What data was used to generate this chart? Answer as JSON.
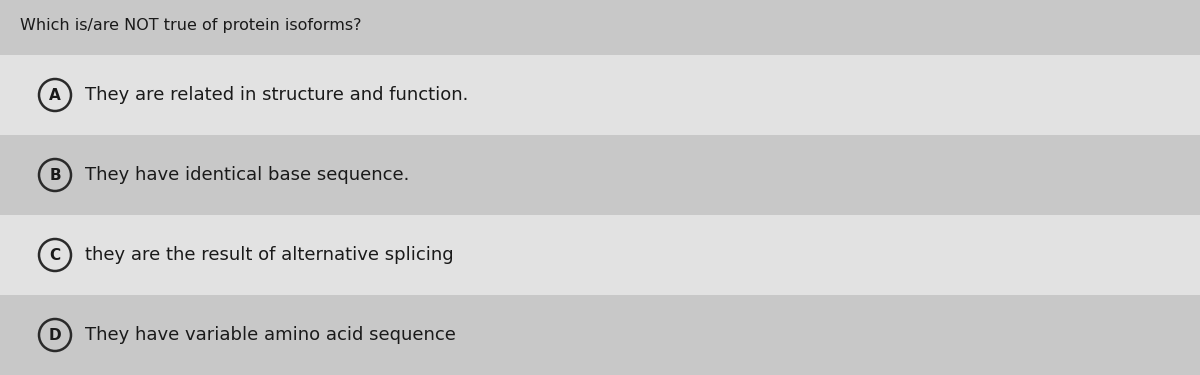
{
  "background_color": "#c8c8c8",
  "row_bg_colors": [
    "#e2e2e2",
    "#c8c8c8",
    "#e2e2e2",
    "#c8c8c8"
  ],
  "question": "Which is/are NOT true of protein isoforms?",
  "question_fontsize": 11.5,
  "options": [
    {
      "label": "A",
      "text": "They are related in structure and function."
    },
    {
      "label": "B",
      "text": "They have identical base sequence."
    },
    {
      "label": "C",
      "text": "they are the result of alternative splicing"
    },
    {
      "label": "D",
      "text": "They have variable amino acid sequence"
    }
  ],
  "option_fontsize": 13,
  "label_fontsize": 11,
  "text_color": "#1a1a1a",
  "circle_edge_color": "#2a2a2a",
  "circle_linewidth": 1.8
}
